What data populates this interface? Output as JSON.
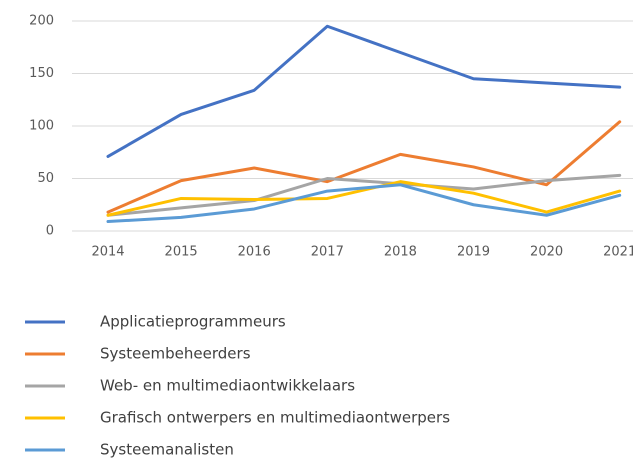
{
  "chart_data": {
    "type": "line",
    "categories": [
      "2014",
      "2015",
      "2016",
      "2017",
      "2018",
      "2019",
      "2020",
      "2021"
    ],
    "series": [
      {
        "name": "Applicatieprogrammeurs",
        "color": "#4472c4",
        "values": [
          71,
          111,
          134,
          195,
          170,
          145,
          141,
          137
        ]
      },
      {
        "name": "Systeembeheerders",
        "color": "#ed7d31",
        "values": [
          18,
          48,
          60,
          47,
          73,
          61,
          44,
          104
        ]
      },
      {
        "name": "Web- en multimediaontwikkelaars",
        "color": "#a5a5a5",
        "values": [
          15,
          22,
          29,
          50,
          45,
          40,
          48,
          53
        ]
      },
      {
        "name": "Grafisch ontwerpers en multimediaontwerpers",
        "color": "#ffc000",
        "values": [
          15,
          31,
          30,
          31,
          47,
          36,
          18,
          38
        ]
      },
      {
        "name": "Systeemanalisten",
        "color": "#5b9bd5",
        "values": [
          9,
          13,
          21,
          38,
          44,
          25,
          15,
          34
        ]
      }
    ],
    "ylim": [
      0,
      200
    ],
    "yticks": [
      0,
      50,
      100,
      150,
      200
    ],
    "grid": true,
    "legend": "bottom"
  }
}
